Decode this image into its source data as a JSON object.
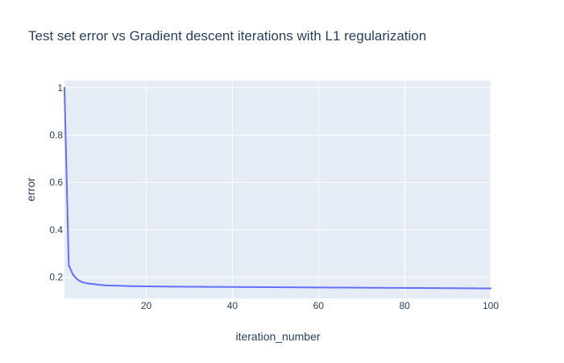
{
  "chart_data": {
    "type": "line",
    "title": "Test set error vs Gradient descent iterations with L1 regularization",
    "xlabel": "iteration_number",
    "ylabel": "error",
    "xlim": [
      1,
      100
    ],
    "ylim": [
      0.11,
      1.03
    ],
    "xticks": [
      20,
      40,
      60,
      80,
      100
    ],
    "yticks": [
      0.2,
      0.4,
      0.6,
      0.8,
      1
    ],
    "grid": true,
    "legend": "none",
    "colors": {
      "background": "#ffffff",
      "plot_background": "#e5ecf6",
      "grid": "#ffffff",
      "line": "#636efa",
      "text": "#2a3f5f"
    },
    "series": [
      {
        "x": [
          1,
          2,
          3,
          4,
          5,
          6,
          7,
          8,
          9,
          10,
          11,
          12,
          13,
          14,
          15,
          16,
          17,
          18,
          19,
          20,
          21,
          22,
          23,
          24,
          25,
          26,
          27,
          28,
          29,
          30,
          31,
          32,
          33,
          34,
          35,
          36,
          37,
          38,
          39,
          40,
          41,
          42,
          43,
          44,
          45,
          46,
          47,
          48,
          49,
          50,
          51,
          52,
          53,
          54,
          55,
          56,
          57,
          58,
          59,
          60,
          61,
          62,
          63,
          64,
          65,
          66,
          67,
          68,
          69,
          70,
          71,
          72,
          73,
          74,
          75,
          76,
          77,
          78,
          79,
          80,
          81,
          82,
          83,
          84,
          85,
          86,
          87,
          88,
          89,
          90,
          91,
          92,
          93,
          94,
          95,
          96,
          97,
          98,
          99,
          100
        ],
        "values": [
          1.0,
          0.25,
          0.21,
          0.19,
          0.18,
          0.175,
          0.172,
          0.17,
          0.168,
          0.166,
          0.165,
          0.1645,
          0.164,
          0.1635,
          0.163,
          0.1625,
          0.162,
          0.1618,
          0.1615,
          0.1612,
          0.161,
          0.1608,
          0.1606,
          0.1604,
          0.1602,
          0.16,
          0.1598,
          0.1597,
          0.1596,
          0.1595,
          0.1594,
          0.1593,
          0.1592,
          0.1591,
          0.159,
          0.1589,
          0.1588,
          0.1587,
          0.1586,
          0.1585,
          0.1584,
          0.1583,
          0.1582,
          0.1581,
          0.158,
          0.1579,
          0.1578,
          0.1577,
          0.1576,
          0.1575,
          0.1574,
          0.1573,
          0.1572,
          0.1571,
          0.157,
          0.1569,
          0.1568,
          0.1567,
          0.1566,
          0.1565,
          0.1564,
          0.1563,
          0.1562,
          0.1561,
          0.156,
          0.1559,
          0.1558,
          0.1557,
          0.1556,
          0.1555,
          0.1554,
          0.1553,
          0.1552,
          0.1551,
          0.155,
          0.1549,
          0.1548,
          0.1547,
          0.1546,
          0.1545,
          0.1544,
          0.1543,
          0.1542,
          0.1541,
          0.154,
          0.1539,
          0.1538,
          0.1537,
          0.1536,
          0.1535,
          0.1534,
          0.1533,
          0.1532,
          0.1531,
          0.153,
          0.1529,
          0.1528,
          0.1527,
          0.1526,
          0.1525
        ]
      }
    ]
  }
}
